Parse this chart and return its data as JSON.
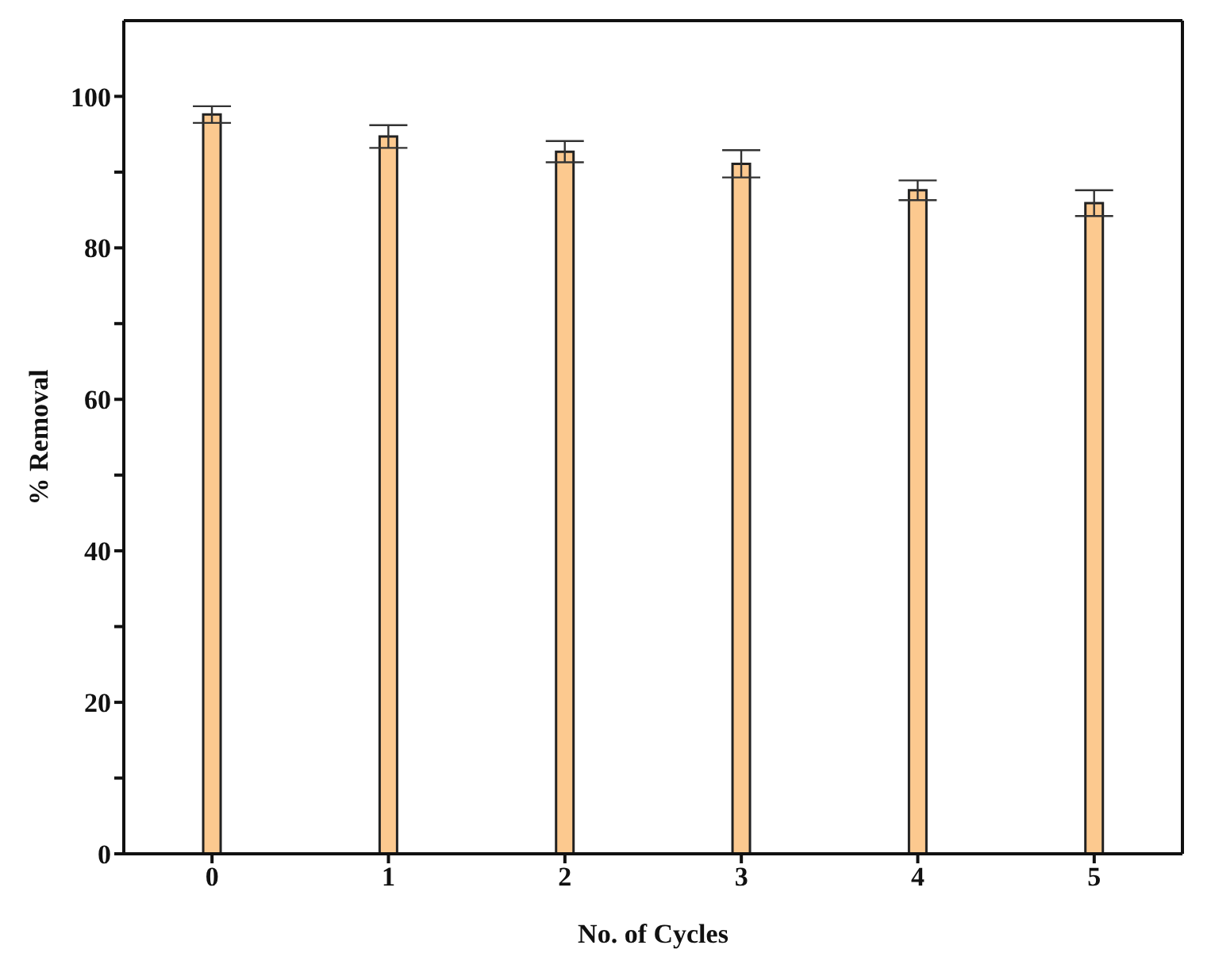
{
  "chart_data": {
    "type": "bar",
    "xlabel": "No. of Cycles",
    "ylabel": "% Removal",
    "categories": [
      "0",
      "1",
      "2",
      "3",
      "4",
      "5"
    ],
    "values": [
      97.6,
      94.7,
      92.7,
      91.1,
      87.6,
      85.9
    ],
    "errors": [
      1.1,
      1.5,
      1.4,
      1.8,
      1.3,
      1.7
    ],
    "color": "#fcc98f",
    "ylim": [
      0,
      110
    ],
    "yticks": [
      0,
      {
        "value": 10,
        "label": null
      },
      20,
      {
        "value": 30,
        "label": null
      },
      40,
      {
        "value": 50,
        "label": null
      },
      60,
      {
        "value": 70,
        "label": null
      },
      80,
      {
        "value": 90,
        "label": null
      },
      100
    ],
    "grid": false
  }
}
